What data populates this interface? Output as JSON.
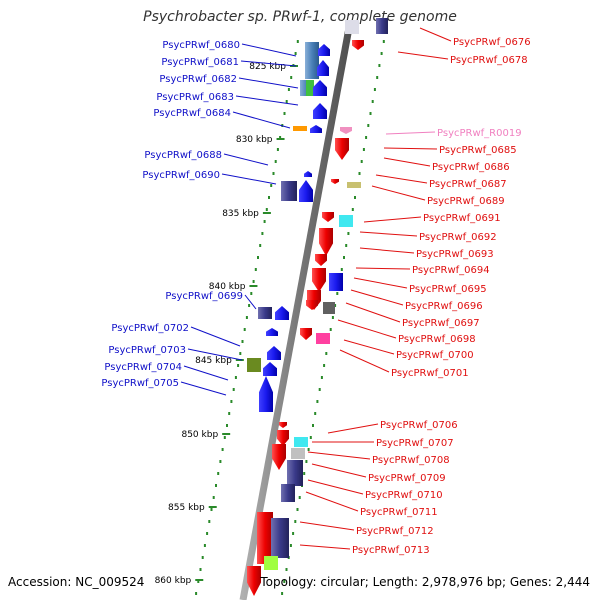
{
  "title": "Psychrobacter sp. PRwf-1, complete genome",
  "footer": {
    "accession": "Accession: NC_009524",
    "info": "Topology: circular; Length: 2,978,976 bp; Genes: 2,444"
  },
  "colors": {
    "backbone": "#8a8a8a",
    "tick_dot": "#2a8a2a",
    "left_label": "#1010c8",
    "right_label": "#e01010",
    "rna_label": "#f080c0"
  },
  "kbp_ticks": [
    "825 kbp",
    "830 kbp",
    "835 kbp",
    "840 kbp",
    "845 kbp",
    "850 kbp",
    "855 kbp",
    "860 kbp"
  ],
  "left_genes": [
    "PsycPRwf_0680",
    "PsycPRwf_0681",
    "PsycPRwf_0682",
    "PsycPRwf_0683",
    "PsycPRwf_0684",
    "PsycPRwf_0688",
    "PsycPRwf_0690",
    "PsycPRwf_0699",
    "PsycPRwf_0702",
    "PsycPRwf_0703",
    "PsycPRwf_0704",
    "PsycPRwf_0705"
  ],
  "right_genes": [
    "PsycPRwf_0676",
    "PsycPRwf_0678",
    "PsycPRwf_R0019",
    "PsycPRwf_0685",
    "PsycPRwf_0686",
    "PsycPRwf_0687",
    "PsycPRwf_0689",
    "PsycPRwf_0691",
    "PsycPRwf_0692",
    "PsycPRwf_0693",
    "PsycPRwf_0694",
    "PsycPRwf_0695",
    "PsycPRwf_0696",
    "PsycPRwf_0697",
    "PsycPRwf_0698",
    "PsycPRwf_0700",
    "PsycPRwf_0701",
    "PsycPRwf_0706",
    "PsycPRwf_0707",
    "PsycPRwf_0708",
    "PsycPRwf_0709",
    "PsycPRwf_0710",
    "PsycPRwf_0711",
    "PsycPRwf_0712",
    "PsycPRwf_0713"
  ]
}
